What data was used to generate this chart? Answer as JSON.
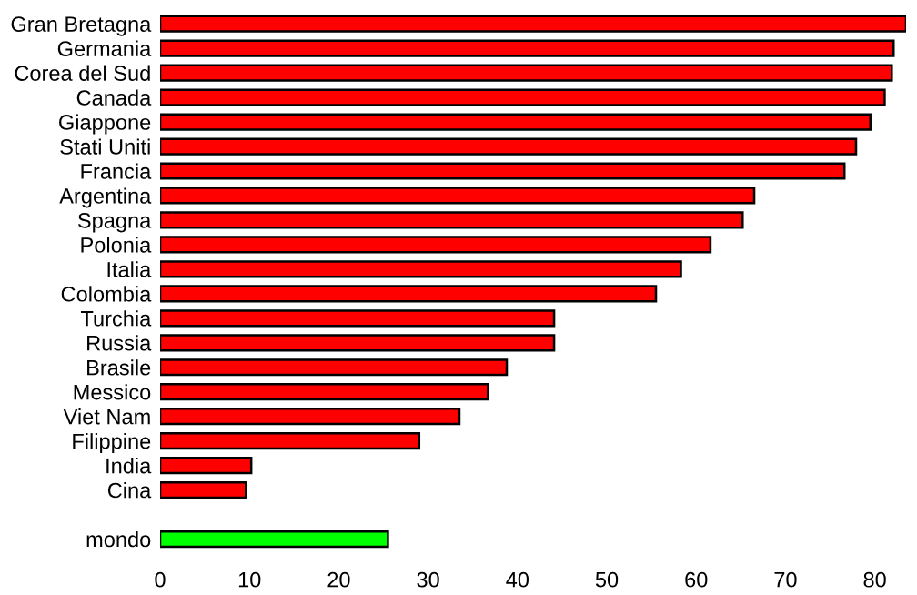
{
  "chart_data": {
    "type": "bar",
    "orientation": "horizontal",
    "categories": [
      "Gran Bretagna",
      "Germania",
      "Corea del Sud",
      "Canada",
      "Giappone",
      "Stati Uniti",
      "Francia",
      "Argentina",
      "Spagna",
      "Polonia",
      "Italia",
      "Colombia",
      "Turchia",
      "Russia",
      "Brasile",
      "Messico",
      "Viet Nam",
      "Filippine",
      "India",
      "Cina",
      null,
      "mondo"
    ],
    "values": [
      83.5,
      82.1,
      81.9,
      81.1,
      79.5,
      77.9,
      76.6,
      66.5,
      65.2,
      61.6,
      58.3,
      55.5,
      44.1,
      44.1,
      38.8,
      36.7,
      33.5,
      29.0,
      10.2,
      9.6,
      null,
      25.5
    ],
    "colors": [
      "#ff0000",
      "#ff0000",
      "#ff0000",
      "#ff0000",
      "#ff0000",
      "#ff0000",
      "#ff0000",
      "#ff0000",
      "#ff0000",
      "#ff0000",
      "#ff0000",
      "#ff0000",
      "#ff0000",
      "#ff0000",
      "#ff0000",
      "#ff0000",
      "#ff0000",
      "#ff0000",
      "#ff0000",
      "#ff0000",
      "#ff0000",
      "#00ff00"
    ],
    "xlim": [
      0,
      83.5
    ],
    "xticks": [
      0,
      10,
      20,
      30,
      40,
      50,
      60,
      70,
      80
    ],
    "grid": false,
    "legend": false
  }
}
